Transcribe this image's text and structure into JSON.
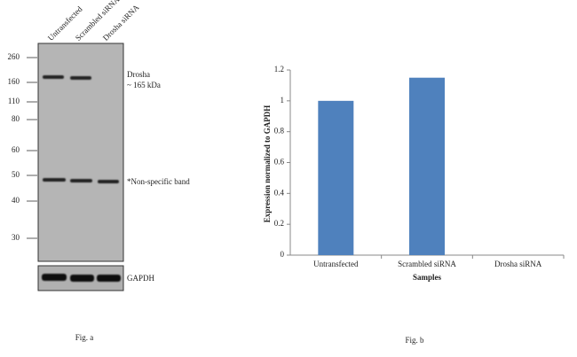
{
  "blot": {
    "lanes": [
      "Untransfected",
      "Scrambled siRNA",
      "Drosha siRNA"
    ],
    "markers": [
      260,
      160,
      110,
      80,
      60,
      50,
      40,
      30
    ],
    "target_label": "Drosha",
    "target_size": "~ 165 kDa",
    "nonspecific_label": "*Non-specific band",
    "loading_label": "GAPDH",
    "caption": "Fig. a"
  },
  "chart_data": {
    "type": "bar",
    "caption": "Fig. b",
    "categories": [
      "Untransfected",
      "Scrambled siRNA",
      "Drosha siRNA"
    ],
    "values": [
      1,
      1.15,
      0
    ],
    "color": "#4f81bd",
    "x_label": "Samples",
    "y_label": "Expression  normalized to GAPDH",
    "ylim": [
      0,
      1.2
    ],
    "yticks": [
      0,
      0.2,
      0.4,
      0.6,
      0.8,
      1,
      1.2
    ]
  }
}
